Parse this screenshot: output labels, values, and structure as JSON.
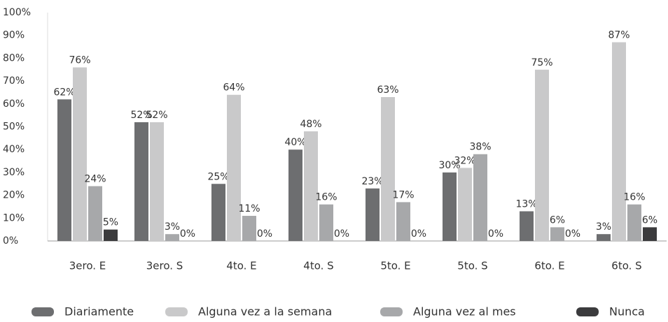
{
  "chart_data": {
    "type": "bar",
    "categories": [
      "3ero. E",
      "3ero. S",
      "4to. E",
      "4to. S",
      "5to. E",
      "5to. S",
      "6to. E",
      "6to. S"
    ],
    "series": [
      {
        "name": "Diariamente",
        "color": "#6d6e70",
        "values": [
          62,
          52,
          25,
          40,
          23,
          30,
          13,
          3
        ],
        "value_labels": [
          "62%",
          "52%",
          "25%",
          "40%",
          "23%",
          "30%",
          "13%",
          "3%"
        ]
      },
      {
        "name": "Alguna vez a la semana",
        "color": "#c9c9ca",
        "values": [
          76,
          52,
          64,
          48,
          63,
          32,
          75,
          87
        ],
        "value_labels": [
          "76%",
          "52%",
          "64%",
          "48%",
          "63%",
          "32%",
          "75%",
          "87%"
        ]
      },
      {
        "name": "Alguna vez al mes",
        "color": "#a7a8aa",
        "values": [
          24,
          3,
          11,
          16,
          17,
          38,
          6,
          16
        ],
        "value_labels": [
          "24%",
          "3%",
          "11%",
          "16%",
          "17%",
          "38%",
          "6%",
          "16%"
        ]
      },
      {
        "name": "Nunca",
        "color": "#3b3b3d",
        "values": [
          5,
          0,
          0,
          0,
          0,
          0,
          0,
          6
        ],
        "value_labels": [
          "5%",
          "0%",
          "0%",
          "0%",
          "0%",
          "0%",
          "0%",
          "6%"
        ]
      }
    ],
    "ylim": [
      0,
      100
    ],
    "yticks": [
      {
        "value": 0,
        "label": "0%"
      },
      {
        "value": 10,
        "label": "10%"
      },
      {
        "value": 20,
        "label": "20%"
      },
      {
        "value": 30,
        "label": "30%"
      },
      {
        "value": 40,
        "label": "40%"
      },
      {
        "value": 50,
        "label": "50%"
      },
      {
        "value": 60,
        "label": "60%"
      },
      {
        "value": 70,
        "label": "70%"
      },
      {
        "value": 80,
        "label": "80%"
      },
      {
        "value": 90,
        "label": "90%"
      },
      {
        "value": 100,
        "label": "100%"
      }
    ],
    "legend": "bottom"
  }
}
